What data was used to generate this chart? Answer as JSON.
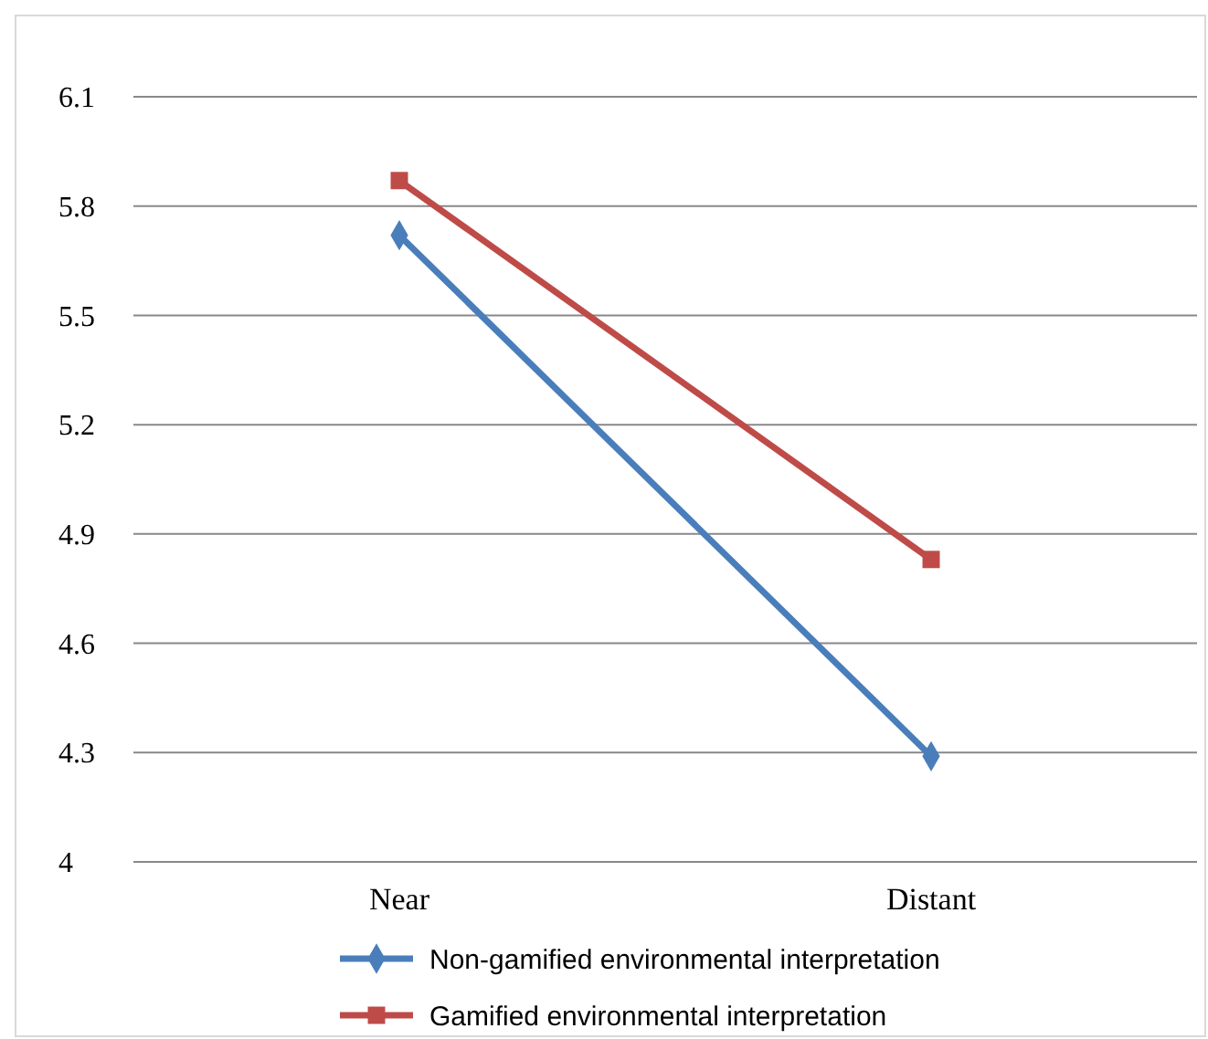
{
  "chart_data": {
    "type": "line",
    "categories": [
      "Near",
      "Distant"
    ],
    "series": [
      {
        "name": "Non-gamified environmental interpretation",
        "color": "#4a7ebb",
        "values": [
          5.72,
          4.29
        ],
        "marker": "diamond"
      },
      {
        "name": "Gamified environmental interpretation",
        "color": "#be4b48",
        "values": [
          5.87,
          4.83
        ],
        "marker": "square"
      }
    ],
    "ylim": [
      4,
      6.1
    ],
    "yticks": [
      4,
      4.3,
      4.6,
      4.9,
      5.2,
      5.5,
      5.8,
      6.1
    ],
    "grid": "y",
    "legend": "bottom"
  }
}
